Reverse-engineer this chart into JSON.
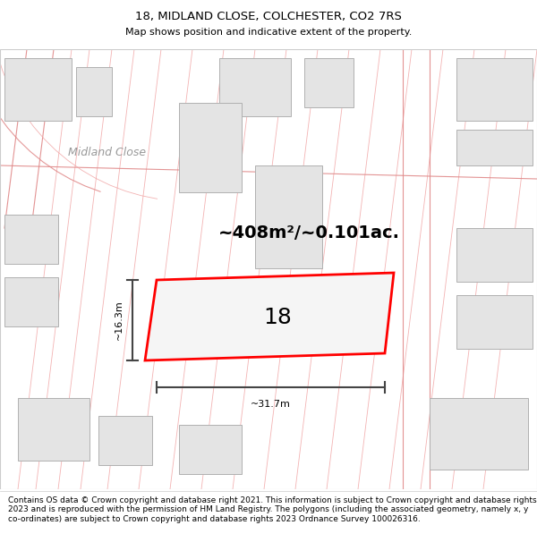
{
  "title": "18, MIDLAND CLOSE, COLCHESTER, CO2 7RS",
  "subtitle": "Map shows position and indicative extent of the property.",
  "footer": "Contains OS data © Crown copyright and database right 2021. This information is subject to Crown copyright and database rights 2023 and is reproduced with the permission of HM Land Registry. The polygons (including the associated geometry, namely x, y co-ordinates) are subject to Crown copyright and database rights 2023 Ordnance Survey 100026316.",
  "map_bg": "#f9f9f9",
  "highlight_stroke": "#ff0000",
  "dim_line_color": "#444444",
  "label_18": "18",
  "area_label": "~408m²/~0.101ac.",
  "width_label": "~31.7m",
  "height_label": "~16.3m",
  "road_label": "Midland Close",
  "footer_fontsize": 6.5,
  "title_fontsize": 9.5,
  "subtitle_fontsize": 8.0,
  "road_line_color": "#f0a0a0",
  "road_line_color2": "#e08888",
  "building_fill": "#e4e4e4",
  "building_edge": "#b0b0b0",
  "road_label_color": "#999999"
}
